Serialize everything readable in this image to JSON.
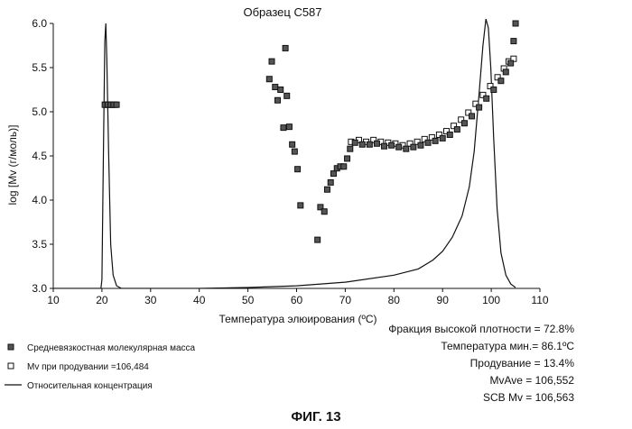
{
  "chart_data": {
    "type": "scatter",
    "title": "Образец С587",
    "xlabel": "Температура элюирования (ºC)",
    "ylabel": "log [Mv (г/моль)]",
    "xlim": [
      10,
      110
    ],
    "ylim": [
      3.0,
      6.0
    ],
    "xticks": [
      "10",
      "20",
      "30",
      "40",
      "50",
      "60",
      "70",
      "80",
      "90",
      "100",
      "110"
    ],
    "yticks": [
      "3.0",
      "3.5",
      "4.0",
      "4.5",
      "5.0",
      "5.5",
      "6.0"
    ],
    "grid": false,
    "legend_position": "bottom-left",
    "series": [
      {
        "name": "Средневязкостная молекулярная масса",
        "marker": "filled-square",
        "points": [
          [
            20.6,
            5.08
          ],
          [
            21.2,
            5.08
          ],
          [
            21.8,
            5.08
          ],
          [
            22.4,
            5.08
          ],
          [
            23.0,
            5.08
          ],
          [
            54.4,
            5.37
          ],
          [
            54.9,
            5.57
          ],
          [
            55.6,
            5.28
          ],
          [
            56.1,
            5.13
          ],
          [
            56.7,
            5.25
          ],
          [
            57.3,
            4.82
          ],
          [
            57.7,
            5.72
          ],
          [
            58.0,
            5.18
          ],
          [
            58.5,
            4.83
          ],
          [
            59.1,
            4.63
          ],
          [
            59.6,
            4.55
          ],
          [
            60.2,
            4.35
          ],
          [
            60.8,
            3.94
          ],
          [
            64.3,
            3.55
          ],
          [
            64.9,
            3.92
          ],
          [
            65.7,
            3.87
          ],
          [
            66.3,
            4.12
          ],
          [
            67.0,
            4.2
          ],
          [
            67.6,
            4.3
          ],
          [
            68.3,
            4.36
          ],
          [
            69.0,
            4.38
          ],
          [
            69.7,
            4.38
          ],
          [
            70.4,
            4.47
          ],
          [
            71.0,
            4.58
          ],
          [
            72.0,
            4.65
          ],
          [
            73.5,
            4.63
          ],
          [
            75.0,
            4.63
          ],
          [
            76.5,
            4.64
          ],
          [
            78.0,
            4.61
          ],
          [
            79.5,
            4.62
          ],
          [
            81.0,
            4.6
          ],
          [
            82.5,
            4.58
          ],
          [
            84.0,
            4.6
          ],
          [
            85.5,
            4.62
          ],
          [
            87.0,
            4.65
          ],
          [
            88.5,
            4.67
          ],
          [
            90.0,
            4.7
          ],
          [
            91.5,
            4.74
          ],
          [
            93.0,
            4.8
          ],
          [
            94.5,
            4.87
          ],
          [
            96.0,
            4.95
          ],
          [
            97.5,
            5.05
          ],
          [
            99.0,
            5.15
          ],
          [
            100.5,
            5.25
          ],
          [
            102.0,
            5.35
          ],
          [
            103.0,
            5.45
          ],
          [
            104.0,
            5.55
          ],
          [
            104.6,
            5.8
          ],
          [
            105.0,
            6.0
          ]
        ]
      },
      {
        "name": "Mv при продувании =106,484",
        "marker": "open-square",
        "points": [
          [
            20.9,
            5.08
          ],
          [
            21.5,
            5.08
          ],
          [
            22.1,
            5.08
          ],
          [
            22.7,
            5.08
          ],
          [
            71.2,
            4.66
          ],
          [
            72.8,
            4.68
          ],
          [
            74.3,
            4.66
          ],
          [
            75.8,
            4.68
          ],
          [
            77.3,
            4.66
          ],
          [
            78.8,
            4.65
          ],
          [
            80.3,
            4.64
          ],
          [
            81.8,
            4.62
          ],
          [
            83.3,
            4.64
          ],
          [
            84.8,
            4.66
          ],
          [
            86.3,
            4.69
          ],
          [
            87.8,
            4.71
          ],
          [
            89.3,
            4.74
          ],
          [
            90.8,
            4.78
          ],
          [
            92.3,
            4.84
          ],
          [
            93.8,
            4.91
          ],
          [
            95.3,
            4.99
          ],
          [
            96.8,
            5.09
          ],
          [
            98.3,
            5.19
          ],
          [
            99.8,
            5.29
          ],
          [
            101.3,
            5.39
          ],
          [
            102.6,
            5.49
          ],
          [
            103.6,
            5.57
          ],
          [
            104.6,
            5.6
          ]
        ]
      },
      {
        "name": "Относительная концентрация",
        "type": "line",
        "points": [
          [
            10,
            3.0
          ],
          [
            19.8,
            3.0
          ],
          [
            20.0,
            3.1
          ],
          [
            20.3,
            4.5
          ],
          [
            20.6,
            5.8
          ],
          [
            20.8,
            6.0
          ],
          [
            21.0,
            5.6
          ],
          [
            21.4,
            4.5
          ],
          [
            21.8,
            3.5
          ],
          [
            22.3,
            3.15
          ],
          [
            23.0,
            3.03
          ],
          [
            24.0,
            3.0
          ],
          [
            40.0,
            3.0
          ],
          [
            50.0,
            3.01
          ],
          [
            60.0,
            3.03
          ],
          [
            70.0,
            3.07
          ],
          [
            80.0,
            3.15
          ],
          [
            85.0,
            3.22
          ],
          [
            88.0,
            3.32
          ],
          [
            90.0,
            3.42
          ],
          [
            92.0,
            3.58
          ],
          [
            94.0,
            3.82
          ],
          [
            95.5,
            4.15
          ],
          [
            96.5,
            4.55
          ],
          [
            97.5,
            5.2
          ],
          [
            98.3,
            5.75
          ],
          [
            98.9,
            6.05
          ],
          [
            99.4,
            5.95
          ],
          [
            99.9,
            5.5
          ],
          [
            100.5,
            4.7
          ],
          [
            101.2,
            3.9
          ],
          [
            102.0,
            3.4
          ],
          [
            103.0,
            3.15
          ],
          [
            104.0,
            3.05
          ],
          [
            105.0,
            3.01
          ]
        ]
      }
    ]
  },
  "stats": {
    "line1": "Фракция высокой плотности = 72.8%",
    "line2": "Температура мин.= 86.1ºC",
    "line3": "Продувание = 13.4%",
    "line4": "MvAve = 106,552",
    "line5": "SCB Mv = 106,563"
  },
  "figure_caption": "ФИГ. 13"
}
